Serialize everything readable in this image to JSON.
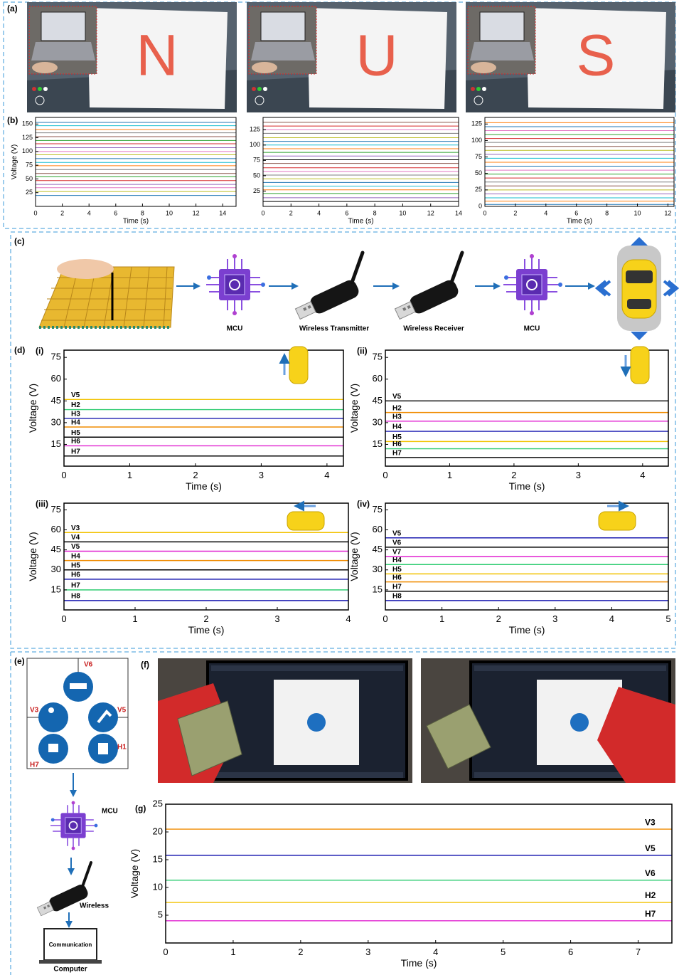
{
  "figure": {
    "panel_labels": [
      "(a)",
      "(b)",
      "(c)",
      "(d)",
      "(e)",
      "(f)",
      "(g)"
    ],
    "letters": [
      "N",
      "U",
      "S"
    ],
    "diagram_c": [
      "MCU",
      "Wireless Transmitter",
      "Wireless Receiver",
      "MCU"
    ],
    "diagram_e": {
      "electrodes": [
        "V6",
        "V3",
        "V5",
        "H7",
        "H1"
      ],
      "mcu": "MCU",
      "wireless": "Wireless",
      "screen": "Communication",
      "computer": "Computer"
    }
  },
  "chart_data": [
    {
      "type": "line",
      "xlabel": "Time (s)",
      "ylabel": "Voltage (V)",
      "xlim": [
        0,
        15
      ],
      "ylim": [
        0,
        162
      ],
      "xticks": [
        0,
        2,
        4,
        6,
        8,
        10,
        12,
        14
      ],
      "yticks": [
        25,
        50,
        75,
        100,
        125,
        150
      ],
      "levels": [
        153,
        147,
        140,
        134,
        127,
        120,
        114,
        107,
        100,
        94,
        87,
        80,
        74,
        67,
        60,
        54,
        47,
        40,
        34,
        27,
        20
      ],
      "colors": [
        "#1f77b4",
        "#17becf",
        "#ff7f0e",
        "#7f7f7f",
        "#8c564b",
        "#2ca02c",
        "#d62728",
        "#9467bd",
        "#e377c2",
        "#bcbd22"
      ]
    },
    {
      "type": "line",
      "xlabel": "Time (s)",
      "xlim": [
        0,
        14
      ],
      "ylim": [
        0,
        145
      ],
      "xticks": [
        0,
        2,
        4,
        6,
        8,
        10,
        12,
        14
      ],
      "yticks": [
        25,
        50,
        75,
        100,
        125
      ],
      "levels": [
        137,
        131,
        125,
        119,
        112,
        106,
        100,
        94,
        88,
        82,
        76,
        70,
        63,
        57,
        51,
        45,
        39,
        33,
        27,
        21,
        14,
        8
      ],
      "colors": [
        "#8c564b",
        "#d62728",
        "#e377c2",
        "#7f7f7f",
        "#bcbd22",
        "#1f77b4",
        "#17becf",
        "#ff7f0e",
        "#2ca02c",
        "#9467bd",
        "#000000"
      ]
    },
    {
      "type": "line",
      "xlabel": "Time (s)",
      "xlim": [
        0,
        12.4
      ],
      "ylim": [
        0,
        135
      ],
      "xticks": [
        0,
        2,
        4,
        6,
        8,
        10,
        12
      ],
      "yticks": [
        0,
        25,
        50,
        75,
        100,
        125
      ],
      "levels": [
        127,
        121,
        115,
        109,
        103,
        97,
        91,
        85,
        79,
        73,
        67,
        61,
        55,
        49,
        43,
        37,
        31,
        25,
        19,
        13,
        8,
        3
      ],
      "colors": [
        "#ff7f0e",
        "#1f77b4",
        "#e377c2",
        "#2ca02c",
        "#d62728",
        "#7f7f7f",
        "#8c564b",
        "#bcbd22",
        "#9467bd",
        "#17becf"
      ]
    },
    {
      "type": "line",
      "label": "(i)",
      "xlabel": "Time (s)",
      "ylabel": "Voltage (V)",
      "xlim": [
        0,
        4.25
      ],
      "ylim": [
        0,
        80
      ],
      "xticks": [
        0,
        1,
        2,
        3,
        4
      ],
      "yticks": [
        15,
        30,
        45,
        60,
        75
      ],
      "series": [
        {
          "name": "V5",
          "color": "#f2c200",
          "level": 46
        },
        {
          "name": "H2",
          "color": "#2ecc71",
          "level": 39
        },
        {
          "name": "H3",
          "color": "#1a1ab0",
          "level": 33
        },
        {
          "name": "H4",
          "color": "#f08c00",
          "level": 27
        },
        {
          "name": "H5",
          "color": "#000000",
          "level": 20
        },
        {
          "name": "H6",
          "color": "#e020d0",
          "level": 14
        },
        {
          "name": "H7",
          "color": "#000000",
          "level": 7
        }
      ]
    },
    {
      "type": "line",
      "label": "(ii)",
      "xlabel": "Time (s)",
      "ylabel": "Voltage (V)",
      "xlim": [
        0,
        4.4
      ],
      "ylim": [
        0,
        80
      ],
      "xticks": [
        0,
        1,
        2,
        3,
        4
      ],
      "yticks": [
        15,
        30,
        45,
        60,
        75
      ],
      "series": [
        {
          "name": "V5",
          "color": "#000000",
          "level": 45
        },
        {
          "name": "H2",
          "color": "#f08c00",
          "level": 37
        },
        {
          "name": "H3",
          "color": "#e020d0",
          "level": 31
        },
        {
          "name": "H4",
          "color": "#1a1ab0",
          "level": 24
        },
        {
          "name": "H5",
          "color": "#f2c200",
          "level": 17
        },
        {
          "name": "H6",
          "color": "#2ecc71",
          "level": 12
        },
        {
          "name": "H7",
          "color": "#000000",
          "level": 6
        }
      ]
    },
    {
      "type": "line",
      "label": "(iii)",
      "xlabel": "Time (s)",
      "ylabel": "Voltage (V)",
      "xlim": [
        0,
        4
      ],
      "ylim": [
        0,
        80
      ],
      "xticks": [
        0,
        1,
        2,
        3,
        4
      ],
      "yticks": [
        15,
        30,
        45,
        60,
        75
      ],
      "series": [
        {
          "name": "V3",
          "color": "#f2c200",
          "level": 58
        },
        {
          "name": "V4",
          "color": "#000000",
          "level": 51
        },
        {
          "name": "V5",
          "color": "#e020d0",
          "level": 44
        },
        {
          "name": "H4",
          "color": "#f08c00",
          "level": 37
        },
        {
          "name": "H5",
          "color": "#000000",
          "level": 30
        },
        {
          "name": "H6",
          "color": "#1a1ab0",
          "level": 23
        },
        {
          "name": "H7",
          "color": "#2ecc71",
          "level": 15
        },
        {
          "name": "H8",
          "color": "#1a1ab0",
          "level": 7
        }
      ]
    },
    {
      "type": "line",
      "label": "(iv)",
      "xlabel": "Time (s)",
      "ylabel": "Voltage (V)",
      "xlim": [
        0,
        5
      ],
      "ylim": [
        0,
        80
      ],
      "xticks": [
        0,
        1,
        2,
        3,
        4,
        5
      ],
      "yticks": [
        15,
        30,
        45,
        60,
        75
      ],
      "series": [
        {
          "name": "V5",
          "color": "#1a1ab0",
          "level": 54
        },
        {
          "name": "V6",
          "color": "#000000",
          "level": 47
        },
        {
          "name": "V7",
          "color": "#e020d0",
          "level": 40
        },
        {
          "name": "H4",
          "color": "#2ecc71",
          "level": 34
        },
        {
          "name": "H5",
          "color": "#f2c200",
          "level": 27
        },
        {
          "name": "H6",
          "color": "#f08c00",
          "level": 21
        },
        {
          "name": "H7",
          "color": "#000000",
          "level": 14
        },
        {
          "name": "H8",
          "color": "#1a1ab0",
          "level": 7
        }
      ]
    },
    {
      "type": "line",
      "xlabel": "Time (s)",
      "ylabel": "Voltage (V)",
      "xlim": [
        0,
        7.5
      ],
      "ylim": [
        0,
        25
      ],
      "xticks": [
        0,
        1,
        2,
        3,
        4,
        5,
        6,
        7
      ],
      "yticks": [
        5,
        10,
        15,
        20,
        25
      ],
      "series": [
        {
          "name": "V3",
          "color": "#f08c00",
          "level": 20.5
        },
        {
          "name": "V5",
          "color": "#1a1ab0",
          "level": 15.8
        },
        {
          "name": "V6",
          "color": "#2ecc71",
          "level": 11.3
        },
        {
          "name": "H2",
          "color": "#f2c200",
          "level": 7.3
        },
        {
          "name": "H7",
          "color": "#e020d0",
          "level": 4
        }
      ]
    }
  ]
}
